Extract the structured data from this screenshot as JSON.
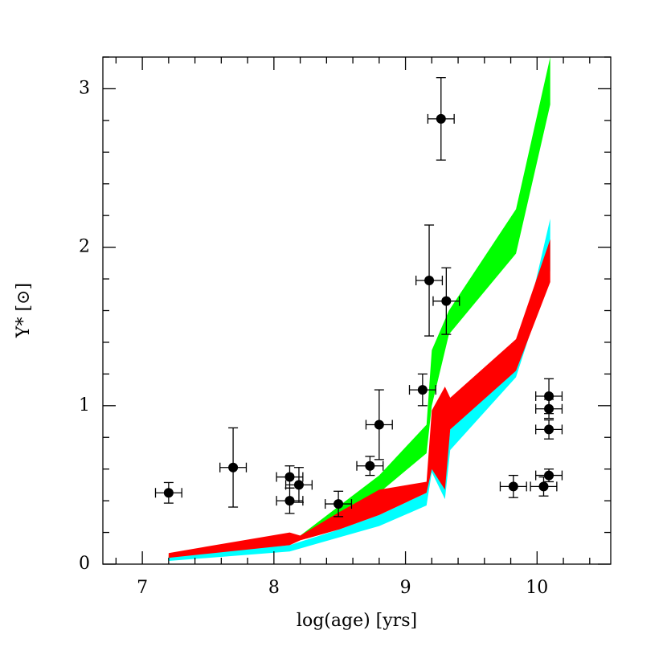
{
  "chart_data": {
    "type": "scatter",
    "xlabel": "log(age) [yrs]",
    "ylabel": "Υ* [⊙]",
    "xlim": [
      6.7,
      10.56
    ],
    "ylim": [
      0,
      3.2
    ],
    "xticks": [
      7,
      8,
      9,
      10
    ],
    "yticks": [
      0,
      1,
      2,
      3
    ],
    "xminorticks": [
      6.8,
      7.2,
      7.4,
      7.6,
      7.8,
      8.2,
      8.4,
      8.6,
      8.8,
      9.2,
      9.4,
      9.6,
      9.8,
      10.2,
      10.4
    ],
    "yminorticks": [
      0.2,
      0.4,
      0.6,
      0.8,
      1.2,
      1.4,
      1.6,
      1.8,
      2.2,
      2.4,
      2.6,
      2.8,
      3.2
    ],
    "color": "#000000",
    "x": [
      7.2,
      7.69,
      8.12,
      8.12,
      8.19,
      8.49,
      8.73,
      8.8,
      9.13,
      9.18,
      9.27,
      9.31,
      9.82,
      10.05,
      10.09,
      10.09,
      10.09,
      10.09
    ],
    "y": [
      0.45,
      0.61,
      0.55,
      0.4,
      0.5,
      0.38,
      0.62,
      0.88,
      1.1,
      1.79,
      2.81,
      1.66,
      0.49,
      0.49,
      0.56,
      0.85,
      0.98,
      1.06
    ],
    "xerr": [
      0.1,
      0.1,
      0.1,
      0.1,
      0.1,
      0.1,
      0.1,
      0.1,
      0.1,
      0.1,
      0.1,
      0.1,
      0.1,
      0.1,
      0.1,
      0.1,
      0.1,
      0.1
    ],
    "yerr": [
      0.065,
      0.25,
      0.07,
      0.08,
      0.11,
      0.08,
      0.06,
      0.22,
      0.1,
      0.35,
      0.26,
      0.21,
      0.07,
      0.06,
      0.04,
      0.06,
      0.06,
      0.11
    ],
    "bands": [
      {
        "color": "#00ffff",
        "x": [
          7.2,
          8.12,
          8.5,
          8.8,
          9.16,
          9.2,
          9.3,
          9.34,
          9.84,
          10.1
        ],
        "upper": [
          0.05,
          0.12,
          0.22,
          0.31,
          0.45,
          0.67,
          0.55,
          0.85,
          1.25,
          2.18
        ],
        "lower": [
          0.02,
          0.08,
          0.17,
          0.24,
          0.37,
          0.58,
          0.41,
          0.72,
          1.18,
          1.85
        ]
      },
      {
        "color": "#00ff00",
        "x": [
          7.2,
          8.2,
          8.5,
          8.8,
          9.16,
          9.2,
          9.33,
          9.84,
          10.1
        ],
        "upper": [
          0.06,
          0.18,
          0.37,
          0.56,
          0.88,
          1.35,
          1.6,
          2.24,
          3.2
        ],
        "lower": [
          0.04,
          0.17,
          0.29,
          0.45,
          0.7,
          1.0,
          1.45,
          1.96,
          2.9
        ]
      },
      {
        "color": "#ff0000",
        "x": [
          7.2,
          8.12,
          8.2,
          8.5,
          8.8,
          9.16,
          9.2,
          9.3,
          9.34,
          9.84,
          10.1
        ],
        "upper": [
          0.07,
          0.2,
          0.18,
          0.33,
          0.47,
          0.52,
          0.97,
          1.12,
          1.05,
          1.42,
          2.05
        ],
        "lower": [
          0.04,
          0.12,
          0.15,
          0.22,
          0.31,
          0.45,
          0.6,
          0.47,
          0.85,
          1.22,
          1.78
        ]
      }
    ]
  }
}
